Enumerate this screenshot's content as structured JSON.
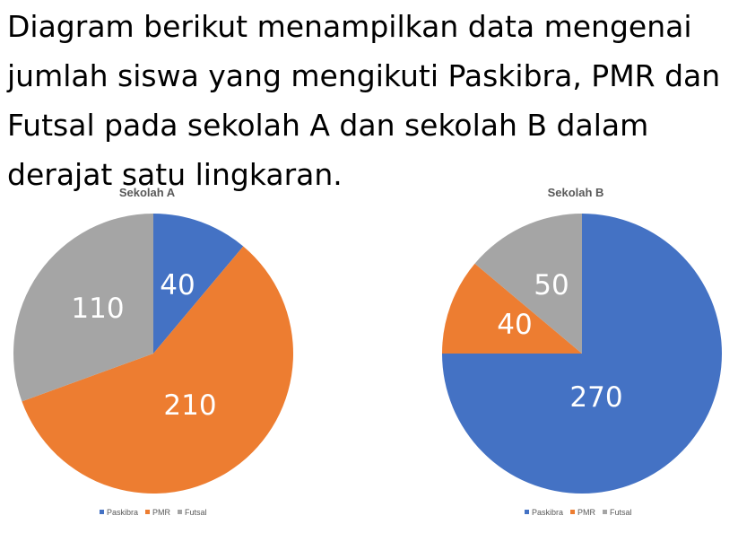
{
  "heading": {
    "lines": [
      "Diagram berikut menampilkan data mengenai",
      "jumlah siswa yang mengikuti Paskibra, PMR dan",
      "Futsal pada sekolah A dan sekolah B dalam",
      "derajat satu lingkaran."
    ]
  },
  "colors": {
    "Paskibra": "#4472C4",
    "PMR": "#ED7D31",
    "Futsal": "#A5A5A5"
  },
  "chart_data": [
    {
      "type": "pie",
      "title": "Sekolah A",
      "categories": [
        "Paskibra",
        "PMR",
        "Futsal"
      ],
      "values": [
        40,
        210,
        110
      ],
      "data_labels": [
        "40",
        "210",
        "110"
      ],
      "legend": "bottom"
    },
    {
      "type": "pie",
      "title": "Sekolah B",
      "categories": [
        "Paskibra",
        "PMR",
        "Futsal"
      ],
      "values": [
        270,
        40,
        50
      ],
      "data_labels": [
        "270",
        "40",
        "50"
      ],
      "legend": "bottom"
    }
  ]
}
